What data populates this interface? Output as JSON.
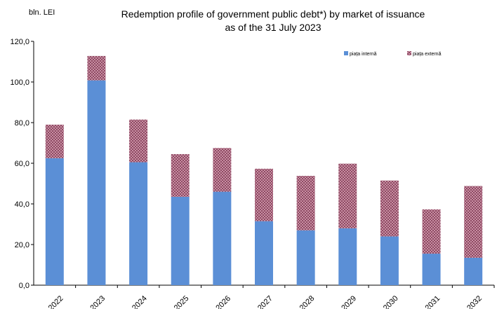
{
  "chart_data": {
    "type": "bar",
    "stacked": true,
    "title": "Redemption profile of government public debt*) by market of issuance",
    "subtitle": "as of the 31 July  2023",
    "unit_label": "bln. LEI",
    "xlabel": "",
    "ylabel": "",
    "ylim": [
      0,
      120
    ],
    "yticks": [
      "0,0",
      "20,0",
      "40,0",
      "60,0",
      "80,0",
      "100,0",
      "120,0"
    ],
    "ytick_values": [
      0,
      20,
      40,
      60,
      80,
      100,
      120
    ],
    "grid": false,
    "legend_position": "top-right",
    "categories": [
      "2022",
      "2023",
      "2024",
      "2025",
      "2026",
      "2027",
      "2028",
      "2029",
      "2030",
      "2031",
      "2032"
    ],
    "series": [
      {
        "name": "piața internă",
        "color": "#5B8FD6",
        "values": [
          62.5,
          100.8,
          60.5,
          43.5,
          46.0,
          31.5,
          27.0,
          28.0,
          24.0,
          15.5,
          13.5
        ]
      },
      {
        "name": "piața externă",
        "color": "#9E5A72",
        "values": [
          16.5,
          12.0,
          21.0,
          21.0,
          21.5,
          25.8,
          26.8,
          31.8,
          27.5,
          21.8,
          35.3
        ]
      }
    ]
  }
}
